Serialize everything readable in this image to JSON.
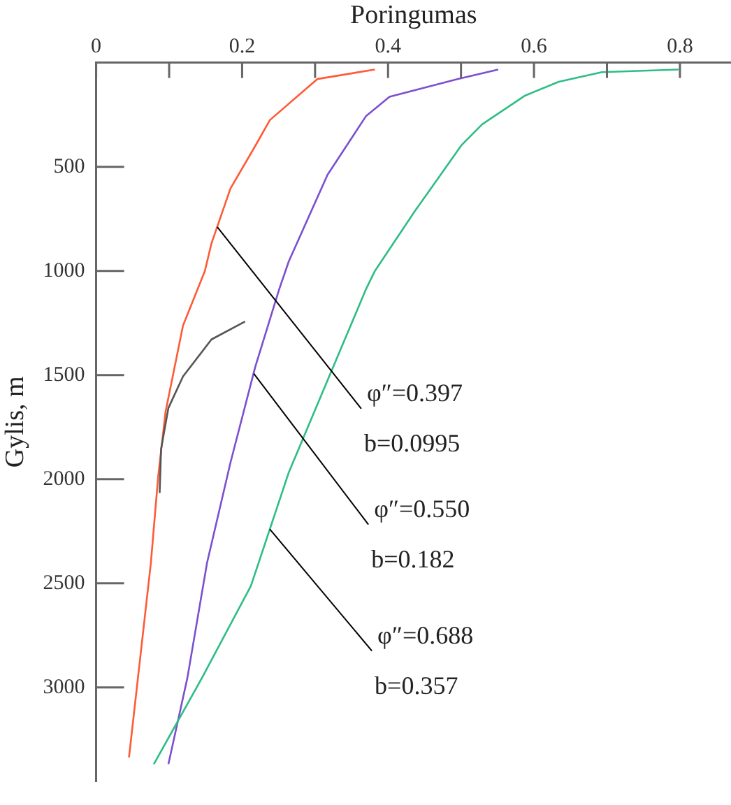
{
  "chart_data": {
    "type": "line",
    "xlabel": "Poringumas",
    "ylabel": "Gylis, m",
    "xlim": [
      0,
      0.87
    ],
    "ylim": [
      3450,
      0
    ],
    "xticks": [
      0,
      {
        "value": 0.1,
        "label": null
      },
      0.2,
      {
        "value": 0.3,
        "label": null
      },
      0.4,
      {
        "value": 0.5,
        "label": null
      },
      0.6,
      {
        "value": 0.7,
        "label": null
      },
      0.8
    ],
    "yticks": [
      500,
      1000,
      1500,
      2000,
      2500,
      3000
    ],
    "grid": false,
    "legend": false,
    "marker": "none",
    "line_style": "solid",
    "series": [
      {
        "color": "#ff5a36",
        "x": [
          0.382,
          0.303,
          0.238,
          0.22,
          0.184,
          0.158,
          0.149,
          0.119,
          0.095,
          0.085,
          0.075,
          0.045
        ],
        "values": [
          33,
          79,
          276,
          388,
          605,
          868,
          1000,
          1263,
          1678,
          1987,
          2401,
          3336
        ]
      },
      {
        "color": "#7a50d0",
        "x": [
          0.551,
          0.495,
          0.402,
          0.37,
          0.317,
          0.264,
          0.251,
          0.218,
          0.184,
          0.152,
          0.125,
          0.099
        ],
        "values": [
          33,
          79,
          164,
          256,
          539,
          954,
          1086,
          1461,
          1921,
          2401,
          2954,
          3368
        ]
      },
      {
        "color": "#2ebd85",
        "x": [
          0.798,
          0.693,
          0.634,
          0.588,
          0.529,
          0.501,
          0.436,
          0.382,
          0.37,
          0.317,
          0.264,
          0.212,
          0.145,
          0.079
        ],
        "values": [
          33,
          46,
          92,
          158,
          296,
          395,
          717,
          1000,
          1086,
          1526,
          1967,
          2513,
          2954,
          3368
        ]
      },
      {
        "color": "#555555",
        "x": [
          0.204,
          0.158,
          0.119,
          0.099,
          0.089,
          0.087
        ],
        "values": [
          1243,
          1329,
          1507,
          1658,
          1855,
          2066
        ]
      }
    ],
    "annotations": [
      {
        "text": "φ″=0.397\nb=0.0995",
        "x": 0.166,
        "y": 789
      },
      {
        "text": "φ″=0.550\nb=0.182",
        "x": 0.216,
        "y": 1493
      },
      {
        "text": "φ″=0.688\nb=0.357",
        "x": 0.238,
        "y": 2240
      }
    ]
  }
}
